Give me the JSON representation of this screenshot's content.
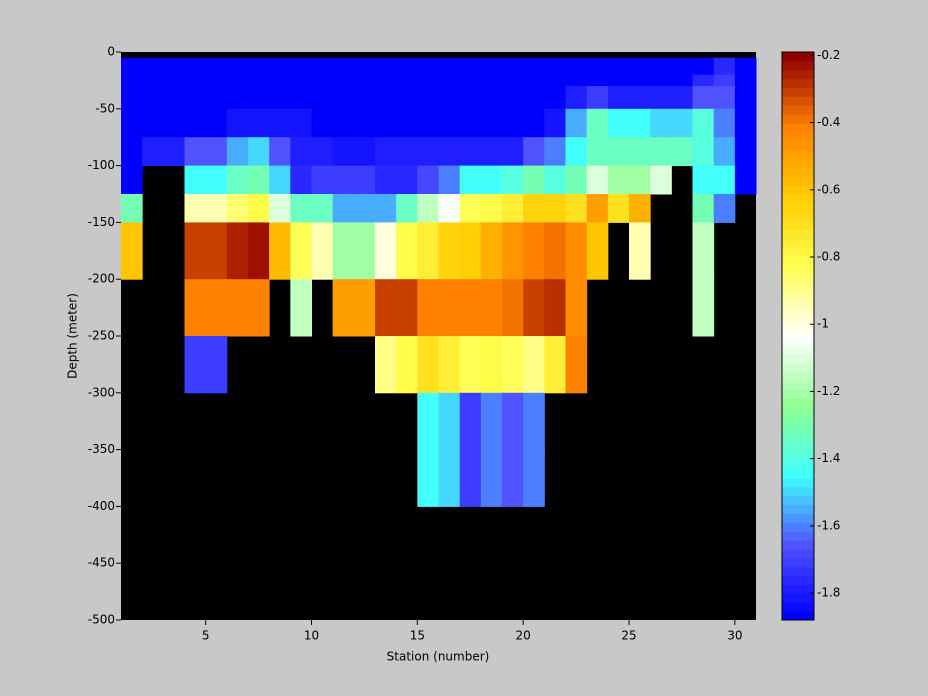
{
  "chart_data": {
    "type": "heatmap",
    "xlabel": "Station (number)",
    "ylabel": "Depth (meter)",
    "x": [
      1,
      2,
      3,
      4,
      5,
      6,
      7,
      8,
      9,
      10,
      11,
      12,
      13,
      14,
      15,
      16,
      17,
      18,
      19,
      20,
      21,
      22,
      23,
      24,
      25,
      26,
      27,
      28,
      29,
      30,
      31
    ],
    "y": [
      0,
      -5,
      -20,
      -30,
      -50,
      -75,
      -100,
      -125,
      -150,
      -200,
      -250,
      -300,
      -350,
      -400,
      -500
    ],
    "xlim": [
      1,
      31
    ],
    "ylim": [
      -500,
      0
    ],
    "xticks": [
      5,
      10,
      15,
      20,
      25,
      30
    ],
    "yticks": [
      0,
      -50,
      -100,
      -150,
      -200,
      -250,
      -300,
      -350,
      -400,
      -450,
      -500
    ],
    "clim": [
      -1.88,
      -0.19
    ],
    "cticks": [
      -0.2,
      -0.4,
      -0.6,
      -0.8,
      -1,
      -1.2,
      -1.4,
      -1.6,
      -1.8
    ],
    "colorscale": [
      "#0000ff",
      "#5050ff",
      "#40ffff",
      "#90ff90",
      "#ffffff",
      "#ffff50",
      "#ffcc00",
      "#ff8000",
      "#900000"
    ],
    "missing_color": "#000000",
    "values": [
      [
        null,
        null,
        null,
        null,
        null,
        null,
        null,
        null,
        null,
        null,
        null,
        null,
        null,
        null,
        null,
        null,
        null,
        null,
        null,
        null,
        null,
        null,
        null,
        null,
        null,
        null,
        null,
        null,
        null,
        null
      ],
      [
        -1.88,
        -1.88,
        -1.88,
        -1.88,
        -1.88,
        -1.88,
        -1.88,
        -1.88,
        -1.88,
        -1.88,
        -1.88,
        -1.88,
        -1.88,
        -1.88,
        -1.88,
        -1.88,
        -1.88,
        -1.88,
        -1.88,
        -1.88,
        -1.88,
        -1.88,
        -1.88,
        -1.88,
        -1.88,
        -1.88,
        -1.88,
        -1.88,
        -1.75,
        -1.88
      ],
      [
        -1.88,
        -1.88,
        -1.88,
        -1.88,
        -1.88,
        -1.88,
        -1.88,
        -1.88,
        -1.88,
        -1.88,
        -1.88,
        -1.88,
        -1.88,
        -1.88,
        -1.88,
        -1.88,
        -1.88,
        -1.88,
        -1.88,
        -1.88,
        -1.88,
        -1.88,
        -1.88,
        -1.88,
        -1.88,
        -1.88,
        -1.88,
        -1.75,
        -1.7,
        -1.88
      ],
      [
        -1.88,
        -1.88,
        -1.88,
        -1.88,
        -1.88,
        -1.88,
        -1.88,
        -1.88,
        -1.88,
        -1.88,
        -1.88,
        -1.88,
        -1.88,
        -1.88,
        -1.88,
        -1.88,
        -1.88,
        -1.88,
        -1.88,
        -1.88,
        -1.88,
        -1.8,
        -1.7,
        -1.8,
        -1.8,
        -1.8,
        -1.8,
        -1.65,
        -1.65,
        -1.88
      ],
      [
        -1.88,
        -1.88,
        -1.88,
        -1.88,
        -1.88,
        -1.82,
        -1.82,
        -1.82,
        -1.82,
        -1.88,
        -1.88,
        -1.88,
        -1.88,
        -1.88,
        -1.88,
        -1.88,
        -1.88,
        -1.88,
        -1.88,
        -1.88,
        -1.82,
        -1.55,
        -1.35,
        -1.45,
        -1.45,
        -1.5,
        -1.5,
        -1.4,
        -1.6,
        -1.88
      ],
      [
        -1.88,
        -1.8,
        -1.8,
        -1.65,
        -1.65,
        -1.55,
        -1.5,
        -1.65,
        -1.78,
        -1.78,
        -1.82,
        -1.82,
        -1.78,
        -1.78,
        -1.78,
        -1.78,
        -1.78,
        -1.8,
        -1.78,
        -1.65,
        -1.6,
        -1.45,
        -1.35,
        -1.35,
        -1.35,
        -1.35,
        -1.35,
        -1.4,
        -1.55,
        -1.88
      ],
      [
        -1.88,
        null,
        null,
        -1.45,
        -1.45,
        -1.35,
        -1.3,
        -1.5,
        -1.75,
        -1.7,
        -1.72,
        -1.72,
        -1.75,
        -1.75,
        -1.68,
        -1.6,
        -1.45,
        -1.45,
        -1.4,
        -1.3,
        -1.4,
        -1.3,
        -1.1,
        -1.2,
        -1.2,
        -1.1,
        null,
        -1.45,
        -1.45,
        -1.88
      ],
      [
        -1.3,
        null,
        null,
        -0.93,
        -0.93,
        -0.87,
        -0.82,
        -1.1,
        -1.35,
        -1.35,
        -1.55,
        -1.55,
        -1.55,
        -1.35,
        -1.15,
        -1.05,
        -0.85,
        -0.8,
        -0.75,
        -0.65,
        -0.65,
        -0.7,
        -0.5,
        -0.7,
        -0.55,
        null,
        null,
        -1.3,
        -1.6,
        null
      ],
      [
        -0.6,
        null,
        null,
        -0.32,
        -0.32,
        -0.25,
        -0.22,
        -0.58,
        -0.85,
        -0.95,
        -1.2,
        -1.2,
        -1.0,
        -0.8,
        -0.75,
        -0.65,
        -0.62,
        -0.55,
        -0.48,
        -0.42,
        -0.38,
        -0.45,
        -0.6,
        null,
        -0.95,
        null,
        null,
        -1.15,
        null,
        null
      ],
      [
        null,
        null,
        null,
        -0.42,
        -0.42,
        -0.42,
        -0.42,
        null,
        -1.15,
        null,
        -0.5,
        -0.5,
        -0.3,
        -0.32,
        -0.42,
        -0.42,
        -0.42,
        -0.42,
        -0.38,
        -0.32,
        -0.28,
        -0.43,
        null,
        null,
        null,
        null,
        null,
        -1.15,
        null,
        null
      ],
      [
        null,
        null,
        null,
        -1.72,
        -1.72,
        null,
        null,
        null,
        null,
        null,
        null,
        null,
        -0.88,
        -0.8,
        -0.7,
        -0.75,
        -0.85,
        -0.8,
        -0.85,
        -0.9,
        -0.75,
        -0.42,
        null,
        null,
        null,
        null,
        null,
        null,
        null,
        null
      ],
      [
        null,
        null,
        null,
        null,
        null,
        null,
        null,
        null,
        null,
        null,
        null,
        null,
        null,
        null,
        -1.45,
        -1.5,
        -1.7,
        -1.6,
        -1.65,
        -1.6,
        null,
        null,
        null,
        null,
        null,
        null,
        null,
        null,
        null,
        null
      ],
      [
        null,
        null,
        null,
        null,
        null,
        null,
        null,
        null,
        null,
        null,
        null,
        null,
        null,
        null,
        -1.45,
        -1.5,
        -1.7,
        -1.6,
        -1.65,
        -1.6,
        null,
        null,
        null,
        null,
        null,
        null,
        null,
        null,
        null,
        null
      ],
      [
        null,
        null,
        null,
        null,
        null,
        null,
        null,
        null,
        null,
        null,
        null,
        null,
        null,
        null,
        null,
        null,
        null,
        null,
        null,
        null,
        null,
        null,
        null,
        null,
        null,
        null,
        null,
        null,
        null,
        null
      ]
    ]
  }
}
